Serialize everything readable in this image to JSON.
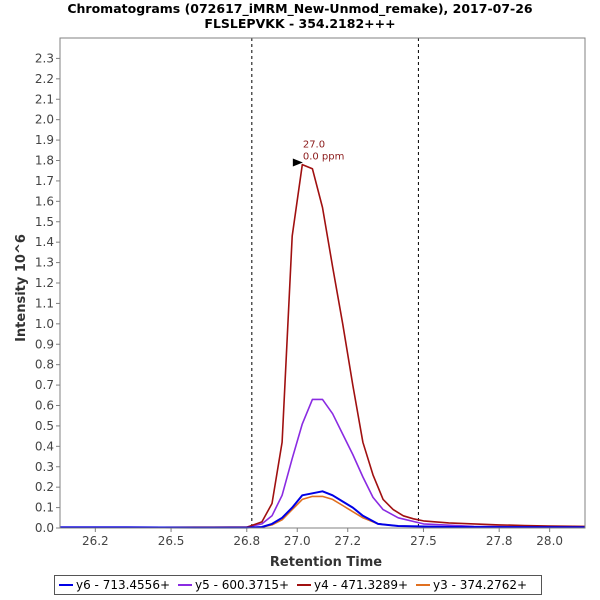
{
  "chart_data": {
    "type": "line",
    "title": "Chromatograms (072617_iMRM_New-Unmod_remake), 2017-07-26",
    "subtitle": "FLSLEPVKK - 354.2182+++",
    "xlabel": "Retention Time",
    "ylabel": "Intensity 10^6",
    "xlim": [
      26.06,
      28.14
    ],
    "ylim": [
      0,
      2.4
    ],
    "xticks": [
      "26.2",
      "26.5",
      "26.8",
      "27.0",
      "27.2",
      "27.5",
      "27.8",
      "28.0"
    ],
    "xtick_values": [
      26.2,
      26.5,
      26.8,
      27.0,
      27.2,
      27.5,
      27.8,
      28.0
    ],
    "yticks": [
      "0.0",
      "0.1",
      "0.2",
      "0.3",
      "0.4",
      "0.5",
      "0.6",
      "0.7",
      "0.8",
      "0.9",
      "1.0",
      "1.1",
      "1.2",
      "1.3",
      "1.4",
      "1.5",
      "1.6",
      "1.7",
      "1.8",
      "1.9",
      "2.0",
      "2.1",
      "2.2",
      "2.3"
    ],
    "vlines": [
      26.82,
      27.48
    ],
    "grid": false,
    "legend_position": "bottom",
    "annotation": {
      "x": 27.03,
      "y": 1.79,
      "line1": "27.0",
      "line2": "0.0 ppm",
      "color": "#8b1a1a"
    },
    "series": [
      {
        "name": "y6 - 713.4556+",
        "color": "#0000e6",
        "x": [
          26.06,
          26.3,
          26.6,
          26.8,
          26.86,
          26.9,
          26.94,
          26.98,
          27.02,
          27.06,
          27.1,
          27.14,
          27.18,
          27.22,
          27.26,
          27.32,
          27.4,
          27.6,
          28.14
        ],
        "y": [
          0.003,
          0.003,
          0.002,
          0.002,
          0.005,
          0.02,
          0.05,
          0.1,
          0.16,
          0.17,
          0.18,
          0.16,
          0.13,
          0.1,
          0.06,
          0.02,
          0.01,
          0.005,
          0.004
        ]
      },
      {
        "name": "y5 - 600.3715+",
        "color": "#8a2be2",
        "x": [
          26.06,
          26.3,
          26.6,
          26.8,
          26.86,
          26.9,
          26.94,
          26.98,
          27.02,
          27.06,
          27.1,
          27.14,
          27.18,
          27.22,
          27.26,
          27.3,
          27.34,
          27.4,
          27.5,
          27.7,
          28.14
        ],
        "y": [
          0.004,
          0.004,
          0.003,
          0.005,
          0.02,
          0.06,
          0.16,
          0.34,
          0.51,
          0.63,
          0.63,
          0.56,
          0.46,
          0.36,
          0.25,
          0.15,
          0.09,
          0.05,
          0.02,
          0.008,
          0.005
        ]
      },
      {
        "name": "y4 - 471.3289+",
        "color": "#a01010",
        "x": [
          26.06,
          26.3,
          26.6,
          26.8,
          26.86,
          26.9,
          26.94,
          26.98,
          27.02,
          27.06,
          27.1,
          27.14,
          27.18,
          27.22,
          27.26,
          27.3,
          27.34,
          27.38,
          27.42,
          27.46,
          27.5,
          27.6,
          27.7,
          27.8,
          27.9,
          28.0,
          28.14
        ],
        "y": [
          0.003,
          0.003,
          0.004,
          0.004,
          0.03,
          0.12,
          0.42,
          1.43,
          1.78,
          1.76,
          1.57,
          1.28,
          1.0,
          0.7,
          0.42,
          0.26,
          0.14,
          0.09,
          0.06,
          0.045,
          0.035,
          0.025,
          0.02,
          0.015,
          0.012,
          0.01,
          0.008
        ]
      },
      {
        "name": "y3 - 374.2762+",
        "color": "#e07020",
        "x": [
          26.06,
          26.3,
          26.6,
          26.8,
          26.86,
          26.9,
          26.94,
          26.98,
          27.02,
          27.06,
          27.1,
          27.14,
          27.18,
          27.22,
          27.26,
          27.32,
          27.4,
          27.6,
          28.14
        ],
        "y": [
          0.002,
          0.002,
          0.002,
          0.002,
          0.004,
          0.015,
          0.04,
          0.09,
          0.14,
          0.155,
          0.155,
          0.14,
          0.11,
          0.08,
          0.05,
          0.02,
          0.01,
          0.005,
          0.003
        ]
      }
    ]
  }
}
